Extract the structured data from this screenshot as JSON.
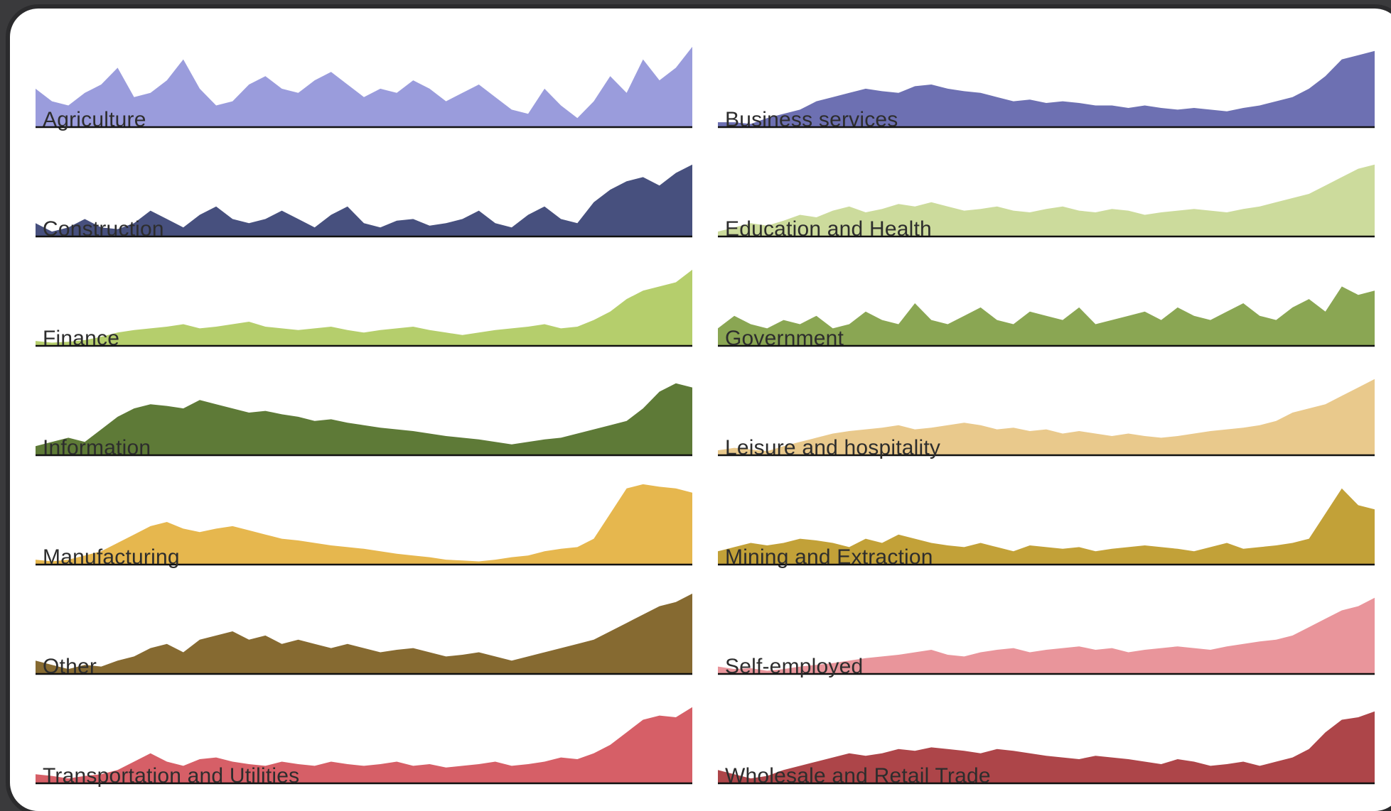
{
  "chart_data": {
    "type": "area",
    "layout": "small-multiples-2-columns",
    "x": [
      0,
      1,
      2,
      3,
      4,
      5,
      6,
      7,
      8,
      9,
      10,
      11,
      12,
      13,
      14,
      15,
      16,
      17,
      18,
      19,
      20,
      21,
      22,
      23,
      24,
      25,
      26,
      27,
      28,
      29,
      30,
      31,
      32,
      33,
      34,
      35,
      36,
      37,
      38,
      39,
      40
    ],
    "ylim": [
      0,
      100
    ],
    "panels": [
      {
        "name": "Agriculture",
        "color": "#9a9cdc",
        "values": [
          45,
          30,
          25,
          40,
          50,
          70,
          35,
          40,
          55,
          80,
          45,
          25,
          30,
          50,
          60,
          45,
          40,
          55,
          65,
          50,
          35,
          45,
          40,
          55,
          45,
          30,
          40,
          50,
          35,
          20,
          15,
          45,
          25,
          10,
          30,
          60,
          40,
          80,
          55,
          70,
          95
        ]
      },
      {
        "name": "Business services",
        "color": "#6d70b2",
        "values": [
          5,
          5,
          3,
          10,
          15,
          20,
          30,
          35,
          40,
          45,
          42,
          40,
          48,
          50,
          45,
          42,
          40,
          35,
          30,
          32,
          28,
          30,
          28,
          25,
          25,
          22,
          25,
          22,
          20,
          22,
          20,
          18,
          22,
          25,
          30,
          35,
          45,
          60,
          80,
          85,
          90
        ]
      },
      {
        "name": "Construction",
        "color": "#47507e",
        "values": [
          15,
          5,
          10,
          20,
          10,
          8,
          15,
          30,
          20,
          10,
          25,
          35,
          20,
          15,
          20,
          30,
          20,
          10,
          25,
          35,
          15,
          10,
          18,
          20,
          12,
          15,
          20,
          30,
          15,
          10,
          25,
          35,
          20,
          15,
          40,
          55,
          65,
          70,
          60,
          75,
          85
        ]
      },
      {
        "name": "Education and Health",
        "color": "#ccdb9c",
        "values": [
          5,
          10,
          15,
          12,
          18,
          25,
          22,
          30,
          35,
          28,
          32,
          38,
          35,
          40,
          35,
          30,
          32,
          35,
          30,
          28,
          32,
          35,
          30,
          28,
          32,
          30,
          25,
          28,
          30,
          32,
          30,
          28,
          32,
          35,
          40,
          45,
          50,
          60,
          70,
          80,
          85
        ]
      },
      {
        "name": "Finance",
        "color": "#b5ce6c",
        "values": [
          5,
          3,
          4,
          6,
          10,
          15,
          18,
          20,
          22,
          25,
          20,
          22,
          25,
          28,
          22,
          20,
          18,
          20,
          22,
          18,
          15,
          18,
          20,
          22,
          18,
          15,
          12,
          15,
          18,
          20,
          22,
          25,
          20,
          22,
          30,
          40,
          55,
          65,
          70,
          75,
          90
        ]
      },
      {
        "name": "Government",
        "color": "#8aa653",
        "values": [
          20,
          35,
          25,
          20,
          30,
          25,
          35,
          20,
          25,
          40,
          30,
          25,
          50,
          30,
          25,
          35,
          45,
          30,
          25,
          40,
          35,
          30,
          45,
          25,
          30,
          35,
          40,
          30,
          45,
          35,
          30,
          40,
          50,
          35,
          30,
          45,
          55,
          40,
          70,
          60,
          65
        ]
      },
      {
        "name": "Information",
        "color": "#5e7a37",
        "values": [
          10,
          15,
          20,
          15,
          30,
          45,
          55,
          60,
          58,
          55,
          65,
          60,
          55,
          50,
          52,
          48,
          45,
          40,
          42,
          38,
          35,
          32,
          30,
          28,
          25,
          22,
          20,
          18,
          15,
          12,
          15,
          18,
          20,
          25,
          30,
          35,
          40,
          55,
          75,
          85,
          80
        ]
      },
      {
        "name": "Leisure and hospitality",
        "color": "#e9c98c",
        "values": [
          5,
          8,
          6,
          4,
          10,
          15,
          20,
          25,
          28,
          30,
          32,
          35,
          30,
          32,
          35,
          38,
          35,
          30,
          32,
          28,
          30,
          25,
          28,
          25,
          22,
          25,
          22,
          20,
          22,
          25,
          28,
          30,
          32,
          35,
          40,
          50,
          55,
          60,
          70,
          80,
          90
        ]
      },
      {
        "name": "Manufacturing",
        "color": "#e6b74e",
        "values": [
          5,
          3,
          5,
          10,
          15,
          25,
          35,
          45,
          50,
          42,
          38,
          42,
          45,
          40,
          35,
          30,
          28,
          25,
          22,
          20,
          18,
          15,
          12,
          10,
          8,
          5,
          4,
          3,
          5,
          8,
          10,
          15,
          18,
          20,
          30,
          60,
          90,
          95,
          92,
          90,
          85
        ]
      },
      {
        "name": "Mining and Extraction",
        "color": "#c2a138",
        "values": [
          15,
          20,
          25,
          22,
          25,
          30,
          28,
          25,
          20,
          30,
          25,
          35,
          30,
          25,
          22,
          20,
          25,
          20,
          15,
          22,
          20,
          18,
          20,
          15,
          18,
          20,
          22,
          20,
          18,
          15,
          20,
          25,
          18,
          20,
          22,
          25,
          30,
          60,
          90,
          70,
          65
        ]
      },
      {
        "name": "Other",
        "color": "#866a31",
        "values": [
          15,
          10,
          5,
          10,
          8,
          15,
          20,
          30,
          35,
          25,
          40,
          45,
          50,
          40,
          45,
          35,
          40,
          35,
          30,
          35,
          30,
          25,
          28,
          30,
          25,
          20,
          22,
          25,
          20,
          15,
          20,
          25,
          30,
          35,
          40,
          50,
          60,
          70,
          80,
          85,
          95
        ]
      },
      {
        "name": "Self-employed",
        "color": "#e9959b",
        "values": [
          8,
          5,
          6,
          3,
          5,
          8,
          10,
          12,
          15,
          18,
          20,
          22,
          25,
          28,
          22,
          20,
          25,
          28,
          30,
          25,
          28,
          30,
          32,
          28,
          30,
          25,
          28,
          30,
          32,
          30,
          28,
          32,
          35,
          38,
          40,
          45,
          55,
          65,
          75,
          80,
          90
        ]
      },
      {
        "name": "Transportation and Utilities",
        "color": "#d65f67",
        "values": [
          10,
          8,
          5,
          8,
          10,
          15,
          25,
          35,
          25,
          20,
          28,
          30,
          25,
          22,
          20,
          25,
          22,
          20,
          25,
          22,
          20,
          22,
          25,
          20,
          22,
          18,
          20,
          22,
          25,
          20,
          22,
          25,
          30,
          28,
          35,
          45,
          60,
          75,
          80,
          78,
          90
        ]
      },
      {
        "name": "Wholesale and Retail Trade",
        "color": "#ad4549",
        "values": [
          15,
          10,
          5,
          8,
          15,
          20,
          25,
          30,
          35,
          32,
          35,
          40,
          38,
          42,
          40,
          38,
          35,
          40,
          38,
          35,
          32,
          30,
          28,
          32,
          30,
          28,
          25,
          22,
          28,
          25,
          20,
          22,
          25,
          20,
          25,
          30,
          40,
          60,
          75,
          78,
          85
        ]
      }
    ]
  }
}
